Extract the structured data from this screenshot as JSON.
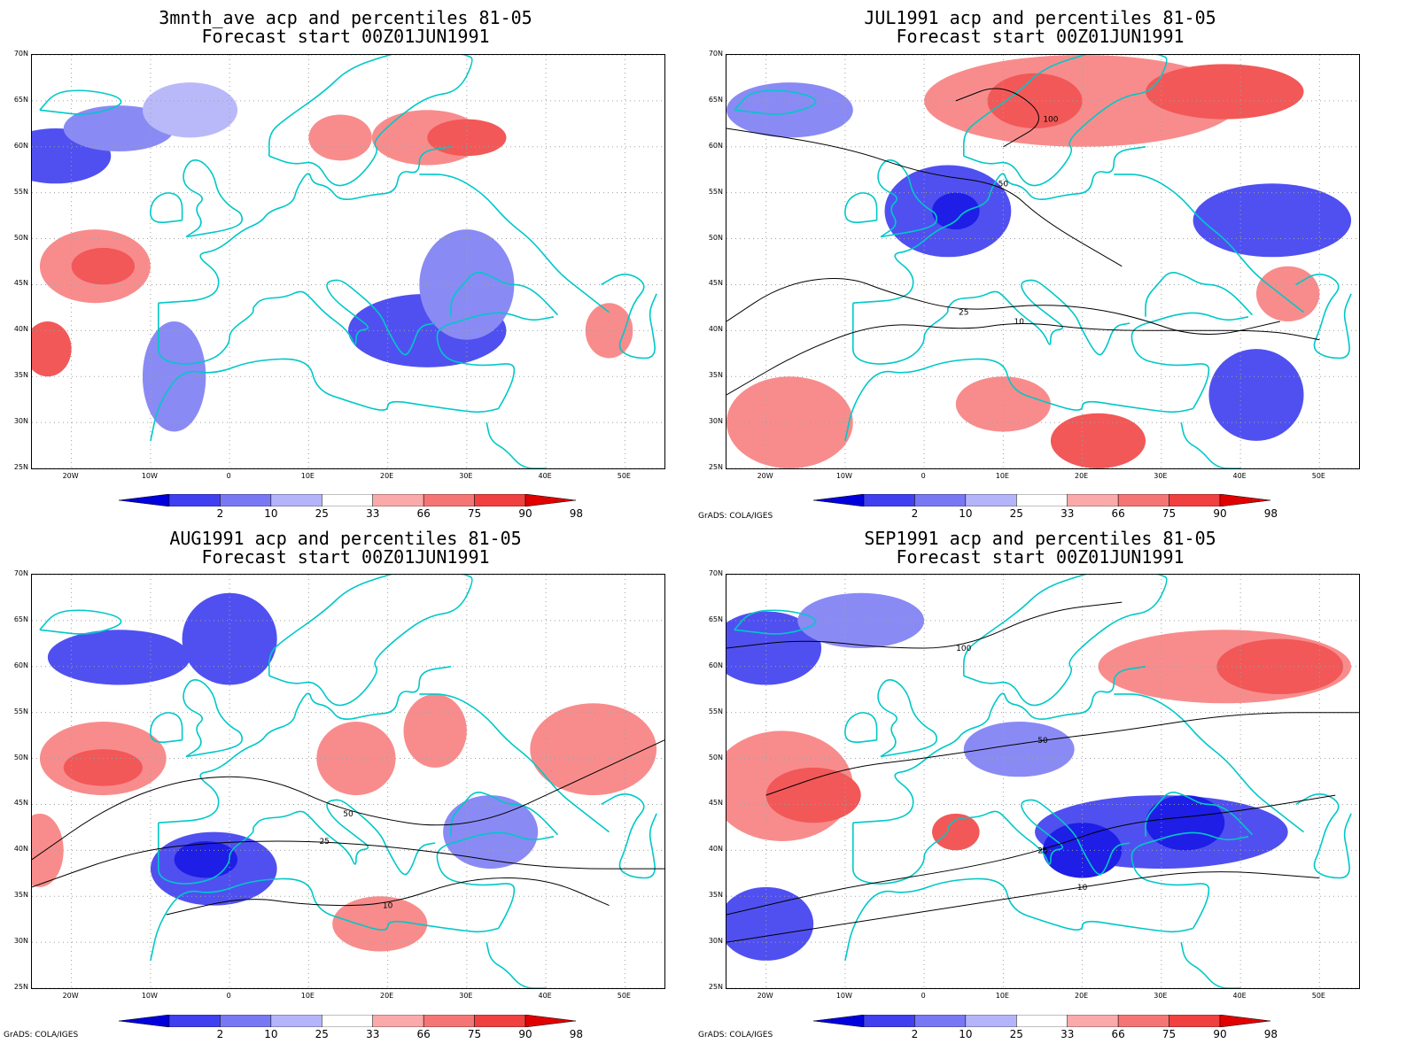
{
  "panels": [
    {
      "title1": "3mnth_ave acp and percentiles 81-05",
      "title2": "Forecast start 00Z01JUN1991",
      "credit": "",
      "blobs": [
        {
          "lon": -22,
          "lat": 59,
          "rx": 7,
          "ry": 3,
          "level": "b2"
        },
        {
          "lon": -14,
          "lat": 62,
          "rx": 7,
          "ry": 2.5,
          "level": "b3"
        },
        {
          "lon": -5,
          "lat": 64,
          "rx": 6,
          "ry": 3,
          "level": "b4"
        },
        {
          "lon": 25,
          "lat": 61,
          "rx": 7,
          "ry": 3,
          "level": "r2"
        },
        {
          "lon": 30,
          "lat": 61,
          "rx": 5,
          "ry": 2,
          "level": "r3"
        },
        {
          "lon": 14,
          "lat": 61,
          "rx": 4,
          "ry": 2.5,
          "level": "r2"
        },
        {
          "lon": -17,
          "lat": 47,
          "rx": 7,
          "ry": 4,
          "level": "r2"
        },
        {
          "lon": -16,
          "lat": 47,
          "rx": 4,
          "ry": 2,
          "level": "r3"
        },
        {
          "lon": -23,
          "lat": 38,
          "rx": 3,
          "ry": 3,
          "level": "r3"
        },
        {
          "lon": 25,
          "lat": 40,
          "rx": 10,
          "ry": 4,
          "level": "b2"
        },
        {
          "lon": 30,
          "lat": 45,
          "rx": 6,
          "ry": 6,
          "level": "b3"
        },
        {
          "lon": -7,
          "lat": 35,
          "rx": 4,
          "ry": 6,
          "level": "b3"
        },
        {
          "lon": 48,
          "lat": 40,
          "rx": 3,
          "ry": 3,
          "level": "r2"
        }
      ],
      "contours": []
    },
    {
      "title1": "JUL1991 acp and percentiles 81-05",
      "title2": "Forecast start 00Z01JUN1991",
      "credit": "GrADS: COLA/IGES",
      "blobs": [
        {
          "lon": 20,
          "lat": 65,
          "rx": 20,
          "ry": 5,
          "level": "r2"
        },
        {
          "lon": 14,
          "lat": 65,
          "rx": 6,
          "ry": 3,
          "level": "r3"
        },
        {
          "lon": 38,
          "lat": 66,
          "rx": 10,
          "ry": 3,
          "level": "r3"
        },
        {
          "lon": 3,
          "lat": 53,
          "rx": 8,
          "ry": 5,
          "level": "b2"
        },
        {
          "lon": 4,
          "lat": 53,
          "rx": 3,
          "ry": 2,
          "level": "b1"
        },
        {
          "lon": 44,
          "lat": 52,
          "rx": 10,
          "ry": 4,
          "level": "b2"
        },
        {
          "lon": -17,
          "lat": 64,
          "rx": 8,
          "ry": 3,
          "level": "b3"
        },
        {
          "lon": -17,
          "lat": 30,
          "rx": 8,
          "ry": 5,
          "level": "r2"
        },
        {
          "lon": 10,
          "lat": 32,
          "rx": 6,
          "ry": 3,
          "level": "r2"
        },
        {
          "lon": 22,
          "lat": 28,
          "rx": 6,
          "ry": 3,
          "level": "r3"
        },
        {
          "lon": 42,
          "lat": 33,
          "rx": 6,
          "ry": 5,
          "level": "b2"
        },
        {
          "lon": 46,
          "lat": 44,
          "rx": 4,
          "ry": 3,
          "level": "r2"
        }
      ],
      "contours": [
        {
          "label": "100",
          "points": [
            [
              4,
              65
            ],
            [
              10,
              67
            ],
            [
              16,
              63
            ],
            [
              10,
              60
            ]
          ]
        },
        {
          "label": "50",
          "points": [
            [
              -25,
              62
            ],
            [
              -10,
              60
            ],
            [
              0,
              57
            ],
            [
              10,
              56
            ],
            [
              15,
              52
            ],
            [
              25,
              47
            ]
          ]
        },
        {
          "label": "25",
          "points": [
            [
              -25,
              41
            ],
            [
              -18,
              45
            ],
            [
              -10,
              46
            ],
            [
              -4,
              44
            ],
            [
              5,
              42
            ],
            [
              15,
              43
            ],
            [
              25,
              42
            ],
            [
              35,
              39
            ],
            [
              45,
              41
            ]
          ]
        },
        {
          "label": "10",
          "points": [
            [
              -25,
              33
            ],
            [
              -15,
              38
            ],
            [
              -5,
              41
            ],
            [
              5,
              40
            ],
            [
              12,
              41
            ],
            [
              22,
              40
            ],
            [
              34,
              40
            ],
            [
              44,
              40
            ],
            [
              50,
              39
            ]
          ]
        }
      ]
    },
    {
      "title1": "AUG1991 acp and percentiles 81-05",
      "title2": "Forecast start 00Z01JUN1991",
      "credit": "GrADS: COLA/IGES",
      "blobs": [
        {
          "lon": -14,
          "lat": 61,
          "rx": 9,
          "ry": 3,
          "level": "b2"
        },
        {
          "lon": 0,
          "lat": 63,
          "rx": 6,
          "ry": 5,
          "level": "b2"
        },
        {
          "lon": -16,
          "lat": 50,
          "rx": 8,
          "ry": 4,
          "level": "r2"
        },
        {
          "lon": -16,
          "lat": 49,
          "rx": 5,
          "ry": 2,
          "level": "r3"
        },
        {
          "lon": 46,
          "lat": 51,
          "rx": 8,
          "ry": 5,
          "level": "r2"
        },
        {
          "lon": 16,
          "lat": 50,
          "rx": 5,
          "ry": 4,
          "level": "r2"
        },
        {
          "lon": 26,
          "lat": 53,
          "rx": 4,
          "ry": 4,
          "level": "r2"
        },
        {
          "lon": -2,
          "lat": 38,
          "rx": 8,
          "ry": 4,
          "level": "b2"
        },
        {
          "lon": -3,
          "lat": 39,
          "rx": 4,
          "ry": 2,
          "level": "b1"
        },
        {
          "lon": 19,
          "lat": 32,
          "rx": 6,
          "ry": 3,
          "level": "r2"
        },
        {
          "lon": 33,
          "lat": 42,
          "rx": 6,
          "ry": 4,
          "level": "b3"
        },
        {
          "lon": -24,
          "lat": 40,
          "rx": 3,
          "ry": 4,
          "level": "r2"
        }
      ],
      "contours": [
        {
          "label": "50",
          "points": [
            [
              -25,
              39
            ],
            [
              -15,
              45
            ],
            [
              -5,
              48
            ],
            [
              5,
              48
            ],
            [
              15,
              44
            ],
            [
              30,
              42
            ],
            [
              45,
              48
            ],
            [
              55,
              52
            ]
          ]
        },
        {
          "label": "25",
          "points": [
            [
              -25,
              36
            ],
            [
              -12,
              40
            ],
            [
              0,
              41
            ],
            [
              12,
              41
            ],
            [
              25,
              40
            ],
            [
              40,
              38
            ],
            [
              55,
              38
            ]
          ]
        },
        {
          "label": "10",
          "points": [
            [
              -8,
              33
            ],
            [
              2,
              35
            ],
            [
              10,
              34
            ],
            [
              20,
              34
            ],
            [
              30,
              37
            ],
            [
              40,
              37
            ],
            [
              48,
              34
            ]
          ]
        }
      ]
    },
    {
      "title1": "SEP1991 acp and percentiles 81-05",
      "title2": "Forecast start 00Z01JUN1991",
      "credit": "GrADS: COLA/IGES",
      "blobs": [
        {
          "lon": -20,
          "lat": 62,
          "rx": 7,
          "ry": 4,
          "level": "b2"
        },
        {
          "lon": -8,
          "lat": 65,
          "rx": 8,
          "ry": 3,
          "level": "b3"
        },
        {
          "lon": 38,
          "lat": 60,
          "rx": 16,
          "ry": 4,
          "level": "r2"
        },
        {
          "lon": 45,
          "lat": 60,
          "rx": 8,
          "ry": 3,
          "level": "r3"
        },
        {
          "lon": -18,
          "lat": 47,
          "rx": 9,
          "ry": 6,
          "level": "r2"
        },
        {
          "lon": -14,
          "lat": 46,
          "rx": 6,
          "ry": 3,
          "level": "r3"
        },
        {
          "lon": 30,
          "lat": 42,
          "rx": 16,
          "ry": 4,
          "level": "b2"
        },
        {
          "lon": 20,
          "lat": 40,
          "rx": 5,
          "ry": 3,
          "level": "b1"
        },
        {
          "lon": 33,
          "lat": 43,
          "rx": 5,
          "ry": 3,
          "level": "b1"
        },
        {
          "lon": -20,
          "lat": 32,
          "rx": 6,
          "ry": 4,
          "level": "b2"
        },
        {
          "lon": 12,
          "lat": 51,
          "rx": 7,
          "ry": 3,
          "level": "b3"
        },
        {
          "lon": 4,
          "lat": 42,
          "rx": 3,
          "ry": 2,
          "level": "r3"
        }
      ],
      "contours": [
        {
          "label": "100",
          "points": [
            [
              -25,
              62
            ],
            [
              -15,
              63
            ],
            [
              -5,
              62
            ],
            [
              5,
              62
            ],
            [
              15,
              66
            ],
            [
              25,
              67
            ]
          ]
        },
        {
          "label": "50",
          "points": [
            [
              -20,
              46
            ],
            [
              -10,
              49
            ],
            [
              0,
              50
            ],
            [
              15,
              52
            ],
            [
              25,
              53
            ],
            [
              40,
              55
            ],
            [
              55,
              55
            ]
          ]
        },
        {
          "label": "25",
          "points": [
            [
              -25,
              33
            ],
            [
              -10,
              36
            ],
            [
              5,
              38
            ],
            [
              15,
              40
            ],
            [
              25,
              43
            ],
            [
              38,
              44
            ],
            [
              52,
              46
            ]
          ]
        },
        {
          "label": "10",
          "points": [
            [
              -25,
              30
            ],
            [
              -10,
              32
            ],
            [
              5,
              34
            ],
            [
              20,
              36
            ],
            [
              35,
              38
            ],
            [
              50,
              37
            ]
          ]
        }
      ]
    }
  ],
  "map": {
    "lon_range": [
      -25,
      55
    ],
    "lat_range": [
      25,
      70
    ],
    "lat_labels": [
      "25N",
      "30N",
      "35N",
      "40N",
      "45N",
      "50N",
      "55N",
      "60N",
      "65N",
      "70N"
    ],
    "lat_values": [
      25,
      30,
      35,
      40,
      45,
      50,
      55,
      60,
      65,
      70
    ],
    "lon_labels": [
      "20W",
      "10W",
      "0",
      "10E",
      "20E",
      "30E",
      "40E",
      "50E"
    ],
    "lon_values": [
      -20,
      -10,
      0,
      10,
      20,
      30,
      40,
      50
    ]
  },
  "colorbar": {
    "labels": [
      "2",
      "10",
      "25",
      "33",
      "66",
      "75",
      "90",
      "98"
    ],
    "colors": [
      "#0000dc",
      "#4040f0",
      "#7878f5",
      "#b4b4fa",
      "#ffffff",
      "#faaaaa",
      "#f57575",
      "#f04040",
      "#e00000"
    ]
  },
  "palette": {
    "b1": "#1e1ee6",
    "b2": "#5050f0",
    "b3": "#8a8af5",
    "b4": "#b9b9fa",
    "r1": "#e81818",
    "r2": "#f88c8c",
    "r3": "#f25858",
    "r4": "#fbc0c0",
    "coast": "#00c8c8",
    "contour": "#000000",
    "grid": "#a0a0a0"
  }
}
